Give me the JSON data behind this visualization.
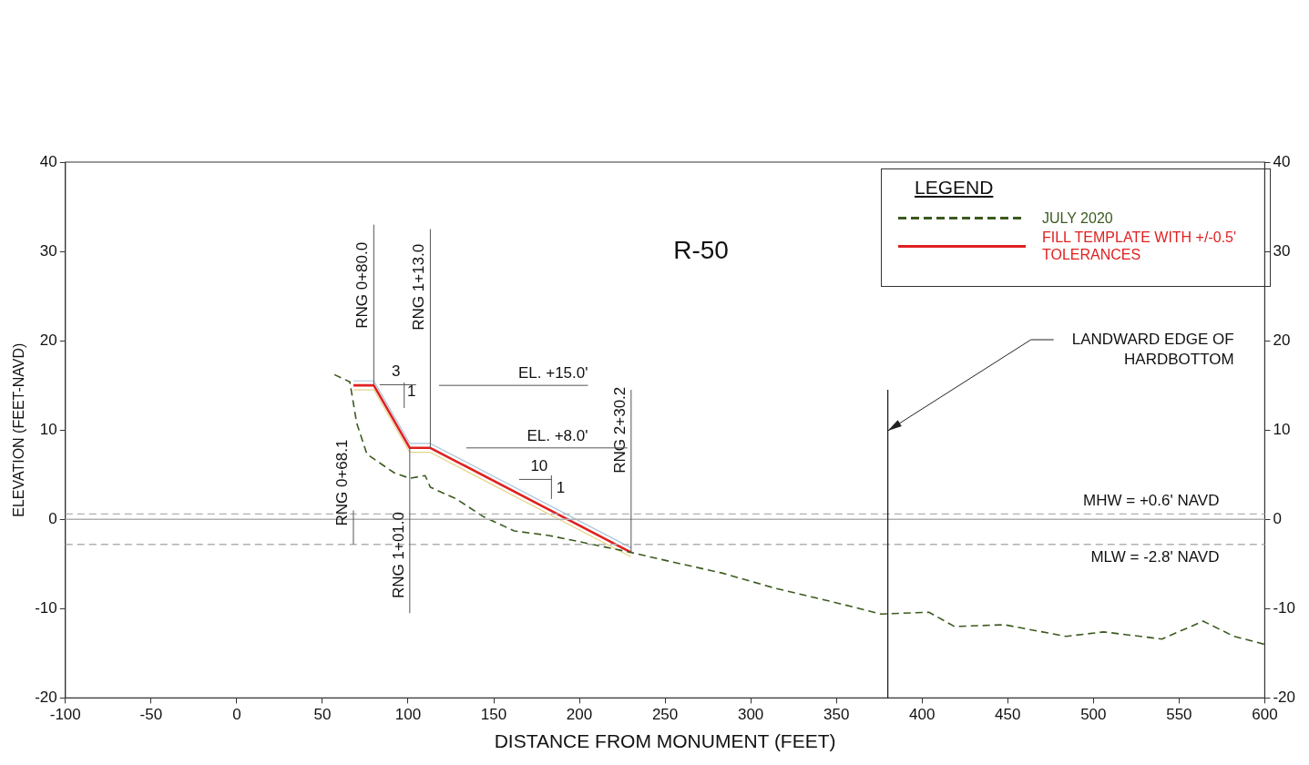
{
  "chart_data": {
    "type": "line",
    "title": "R-50",
    "xlabel": "DISTANCE FROM MONUMENT (FEET)",
    "ylabel": "ELEVATION (FEET-NAVD)",
    "legend_title": "LEGEND",
    "xlim": [
      -100,
      600
    ],
    "xticks": [
      -100,
      -50,
      0,
      50,
      100,
      150,
      200,
      250,
      300,
      350,
      400,
      450,
      500,
      550,
      600
    ],
    "ylim": [
      -20,
      40
    ],
    "yticks": [
      -20,
      -10,
      0,
      10,
      20,
      30,
      40
    ],
    "y2lim": [
      -20,
      40
    ],
    "y2ticks": [
      -20,
      -10,
      0,
      10,
      20,
      30,
      40
    ],
    "grid": false,
    "legend": "top right",
    "marker": "none",
    "series": [
      {
        "name": "JULY 2020",
        "color": "#3b5a1f",
        "line_style": "dashed",
        "x": [
          57,
          66,
          70,
          76,
          92,
          101,
          110,
          113,
          128,
          144,
          162,
          182,
          205,
          230,
          248,
          283,
          314,
          347,
          376,
          404,
          419,
          448,
          484,
          506,
          540,
          564,
          582,
          600
        ],
        "values": [
          16.2,
          15.4,
          10.8,
          7.3,
          5.2,
          4.6,
          4.9,
          3.6,
          2.3,
          0.3,
          -1.3,
          -1.8,
          -2.7,
          -3.7,
          -4.5,
          -6.0,
          -7.7,
          -9.2,
          -10.6,
          -10.4,
          -12.0,
          -11.8,
          -13.1,
          -12.6,
          -13.4,
          -11.4,
          -13.1,
          -14.0
        ]
      },
      {
        "name": "FILL TEMPLATE WITH +/-0.5' TOLERANCES",
        "color": "#e02020",
        "line_style": "solid",
        "x": [
          68.1,
          80,
          101,
          113,
          230.2
        ],
        "values": [
          15,
          15,
          8,
          8,
          -3.7
        ]
      },
      {
        "color": "#a8c6da",
        "line_style": "solid",
        "x": [
          68.1,
          80,
          101,
          113,
          230.2
        ],
        "values": [
          15.5,
          15.5,
          8.5,
          8.5,
          -3.2
        ]
      },
      {
        "color": "#e4d48a",
        "line_style": "solid",
        "x": [
          68.1,
          80,
          101,
          113,
          230.2
        ],
        "values": [
          14.5,
          14.5,
          7.5,
          7.5,
          -4.2
        ]
      }
    ],
    "ref_lines": [
      {
        "axis": "y",
        "value": 0,
        "color": "#b0b0b0",
        "line_style": "solid"
      },
      {
        "axis": "y",
        "value": 0.6,
        "label": "MHW = +0.6' NAVD",
        "color": "#b0b0b0",
        "line_style": "dashed"
      },
      {
        "axis": "y",
        "value": -2.8,
        "label": "MLW = -2.8' NAVD",
        "color": "#b0b0b0",
        "line_style": "dashed"
      },
      {
        "axis": "x",
        "value": 380,
        "label": "LANDWARD EDGE OF HARDBOTTOM",
        "color": "#222222",
        "line_style": "solid"
      }
    ],
    "annotations": [
      {
        "text": "RNG 0+68.1",
        "x": 68.1,
        "y": -2.8
      },
      {
        "text": "RNG 0+80.0",
        "x": 80,
        "y": 15
      },
      {
        "text": "RNG 1+01.0",
        "x": 101,
        "y": 8
      },
      {
        "text": "RNG 1+13.0",
        "x": 113,
        "y": 8
      },
      {
        "text": "RNG 2+30.2",
        "x": 230.2,
        "y": -3.7
      },
      "EL. +15.0'",
      "EL. +8.0'",
      "3",
      "1",
      "10",
      "1"
    ]
  }
}
